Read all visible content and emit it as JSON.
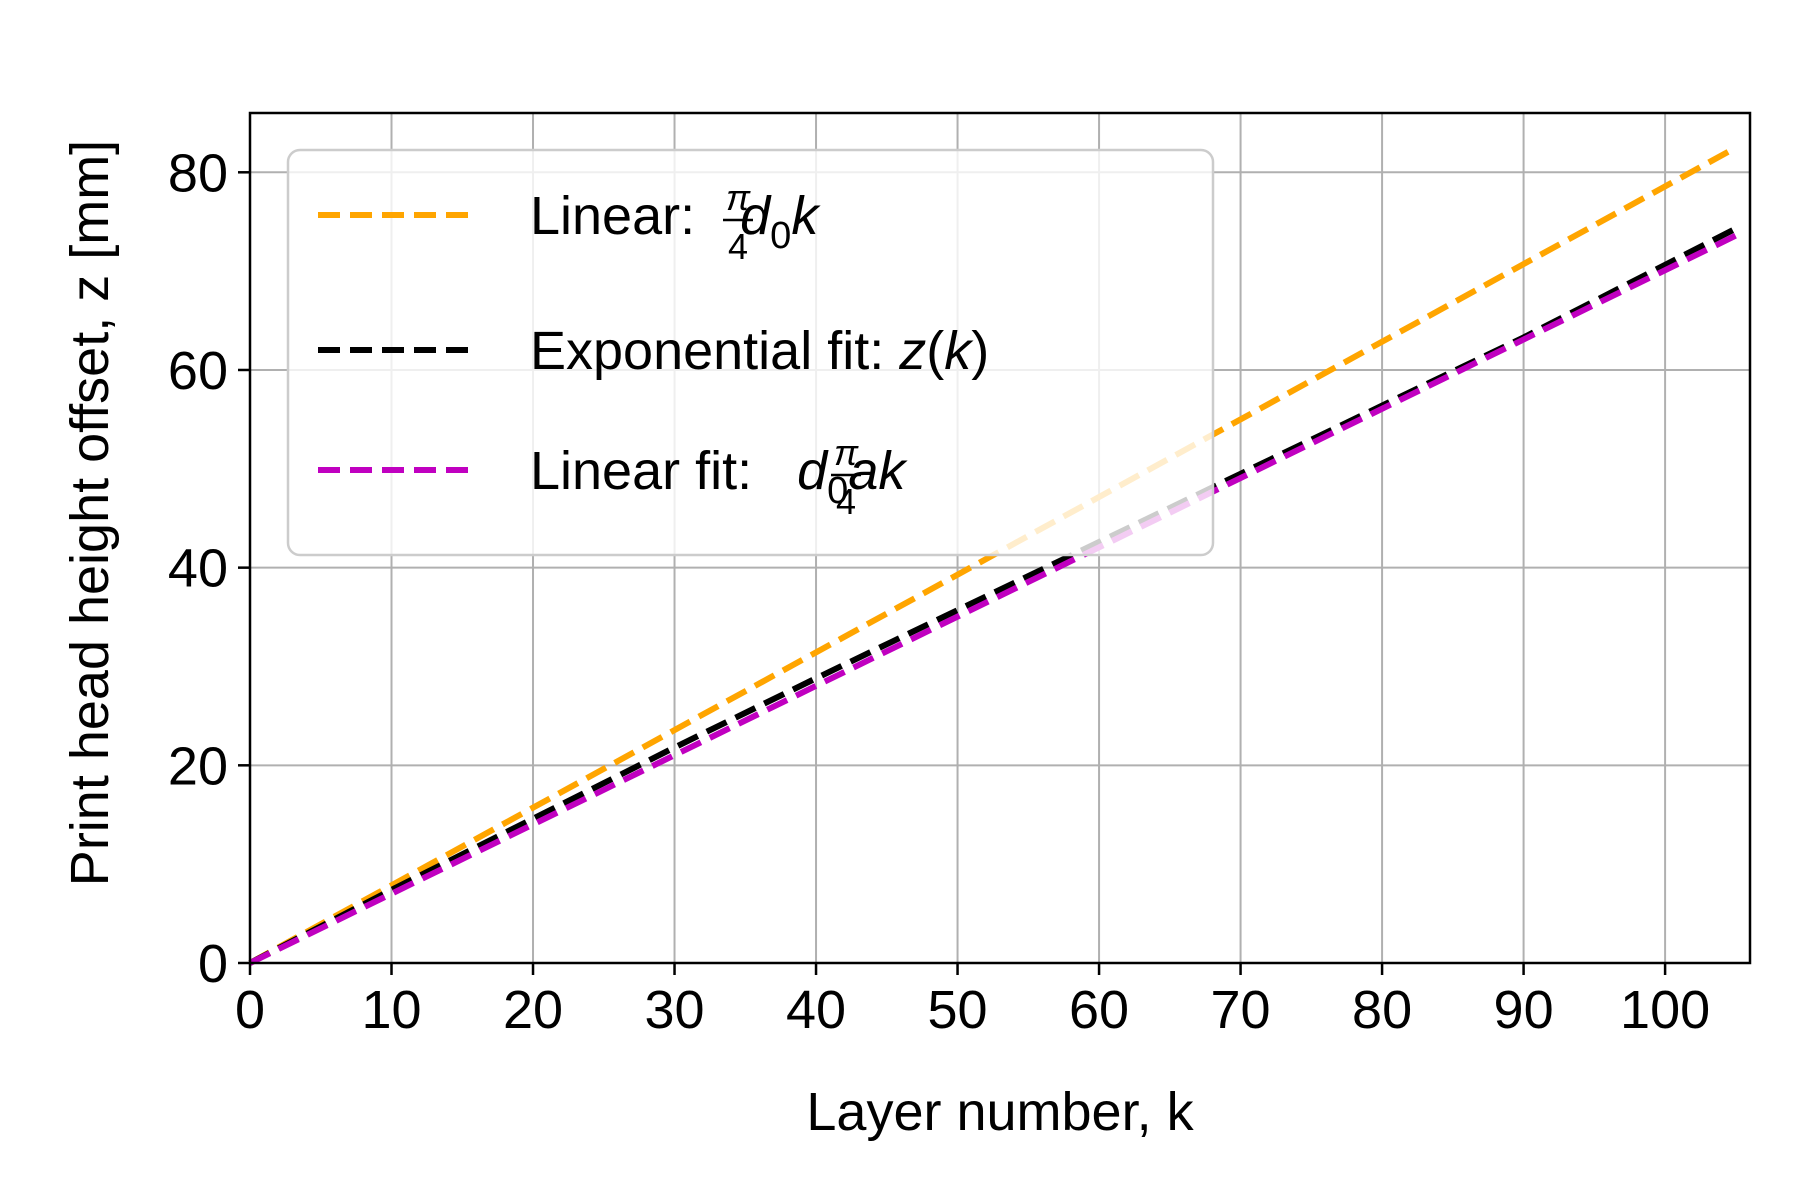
{
  "chart_data": {
    "type": "line",
    "title": "",
    "xlabel": "Layer number, k",
    "ylabel": "Print head height offset, z [mm]",
    "xlim": [
      0,
      106
    ],
    "ylim": [
      0,
      86
    ],
    "xticks": [
      0,
      10,
      20,
      30,
      40,
      50,
      60,
      70,
      80,
      90,
      100
    ],
    "yticks": [
      0,
      20,
      40,
      60,
      80
    ],
    "grid": true,
    "legend_position": "top-left",
    "series": [
      {
        "name": "Linear: π/4 d₀k",
        "legend": {
          "prefix": "Linear: ",
          "frac_num": "π",
          "frac_den": "4",
          "math": "d",
          "sub": "0",
          "suffix": "k"
        },
        "color": "#FFA500",
        "style": "dashed",
        "x": [
          0,
          105
        ],
        "y": [
          0,
          82.5
        ]
      },
      {
        "name": "Exponential fit: z(k)",
        "legend": {
          "prefix": "Exponential fit: ",
          "math_full": "z",
          "paren": "(",
          "math2": "k",
          "paren2": ")"
        },
        "color": "#000000",
        "style": "dashed",
        "x": [
          0,
          10,
          20,
          30,
          40,
          50,
          60,
          70,
          80,
          90,
          105
        ],
        "y": [
          0,
          7.4,
          14.6,
          21.8,
          28.8,
          35.7,
          42.6,
          49.5,
          56.4,
          63.3,
          74.3
        ]
      },
      {
        "name": "Linear fit: π/4 d₀ak",
        "legend": {
          "prefix": "Linear fit: ",
          "frac_num": "π",
          "frac_den": "4",
          "math": "d",
          "sub": "0",
          "suffix": "ak"
        },
        "color": "#C000C0",
        "style": "dashed",
        "x": [
          0,
          105
        ],
        "y": [
          0,
          73.6
        ]
      }
    ]
  }
}
